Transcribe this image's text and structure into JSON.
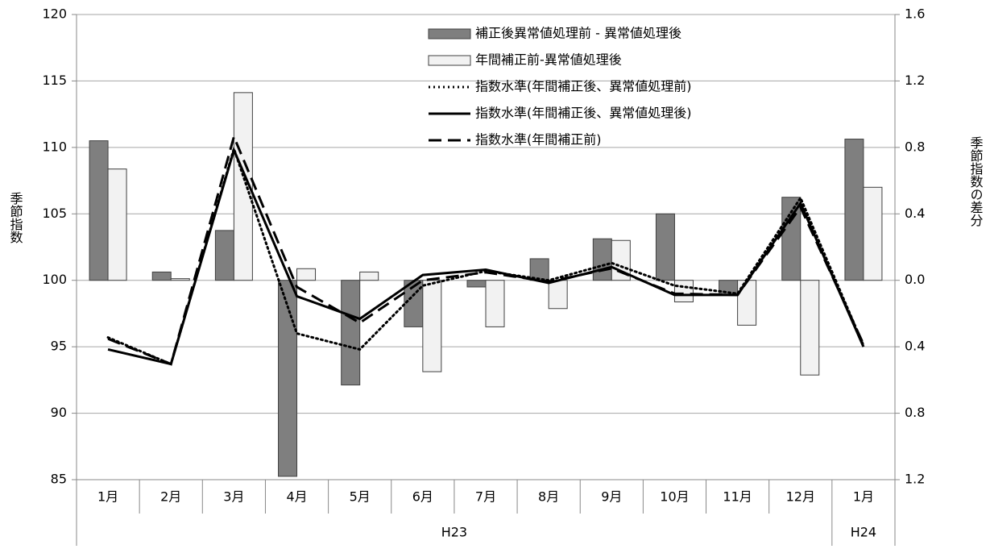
{
  "chart_data": {
    "type": "bar-line",
    "y_label": "季節指数",
    "y2_label": "季節指数の差分",
    "categories": [
      "1月",
      "2月",
      "3月",
      "4月",
      "5月",
      "6月",
      "7月",
      "8月",
      "9月",
      "10月",
      "11月",
      "12月",
      "1月"
    ],
    "groups": [
      {
        "label": "H23",
        "span": 12
      },
      {
        "label": "H24",
        "span": 1
      }
    ],
    "ylim": [
      85,
      120
    ],
    "yticks": [
      85,
      90,
      95,
      100,
      105,
      110,
      115,
      120
    ],
    "y2lim": [
      -1.2,
      1.6
    ],
    "y2ticks": [
      {
        "value": -1.2,
        "label": "1.2"
      },
      {
        "value": -0.8,
        "label": "0.8"
      },
      {
        "value": -0.4,
        "label": "0.4"
      },
      {
        "value": 0,
        "label": "0.0"
      },
      {
        "value": 0.4,
        "label": "0.4"
      },
      {
        "value": 0.8,
        "label": "0.8"
      },
      {
        "value": 1.2,
        "label": "1.2"
      },
      {
        "value": 1.6,
        "label": "1.6"
      }
    ],
    "grid": true,
    "series": [
      {
        "name": "補正後異常値処理前 - 異常値処理後",
        "kind": "bar",
        "axis": "y2",
        "color": "#7f7f7f",
        "values": [
          0.84,
          0.05,
          0.3,
          -1.18,
          -0.63,
          -0.28,
          -0.04,
          0.13,
          0.25,
          0.4,
          -0.09,
          0.5,
          0.85
        ]
      },
      {
        "name": "年間補正前-異常値処理後",
        "kind": "bar",
        "axis": "y2",
        "color": "#f2f2f2",
        "values": [
          0.67,
          0.01,
          1.13,
          0.07,
          0.05,
          -0.55,
          -0.28,
          -0.17,
          0.24,
          -0.13,
          -0.27,
          -0.57,
          0.56
        ]
      },
      {
        "name": "指数水準(年間補正後、異常値処理前)",
        "kind": "line",
        "dash": "dotted",
        "color": "#000000",
        "values": [
          95.7,
          93.7,
          109.9,
          96.0,
          94.8,
          99.6,
          100.7,
          100.0,
          101.3,
          99.6,
          99.0,
          106.2,
          95.1
        ]
      },
      {
        "name": "指数水準(年間補正後、異常値処理後)",
        "kind": "line",
        "dash": "solid",
        "color": "#000000",
        "values": [
          94.8,
          93.7,
          109.8,
          98.8,
          97.1,
          100.4,
          100.8,
          99.8,
          101.0,
          98.9,
          98.9,
          105.8,
          95.0
        ]
      },
      {
        "name": "指数水準(年間補正前)",
        "kind": "line",
        "dash": "dashed",
        "color": "#000000",
        "values": [
          95.6,
          93.7,
          110.8,
          99.5,
          96.8,
          100.0,
          100.6,
          99.9,
          100.9,
          99.0,
          98.9,
          105.5,
          95.2
        ]
      }
    ]
  }
}
